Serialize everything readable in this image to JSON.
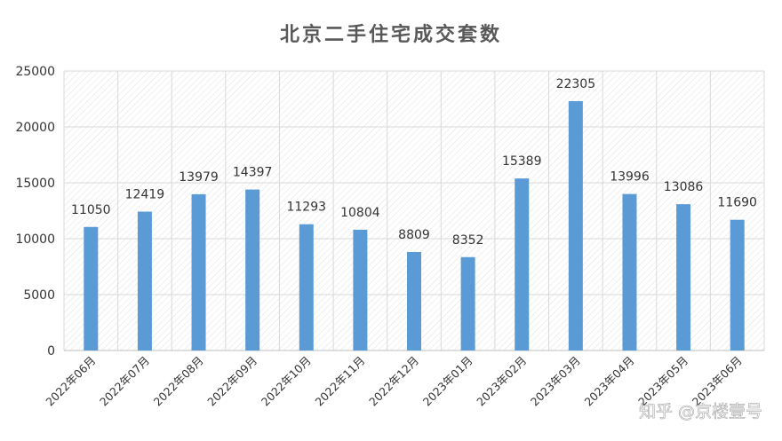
{
  "chart_data": {
    "type": "bar",
    "title": "北京二手住宅成交套数",
    "categories": [
      "2022年06月",
      "2022年07月",
      "2022年08月",
      "2022年09月",
      "2022年10月",
      "2022年11月",
      "2022年12月",
      "2023年01月",
      "2023年02月",
      "2023年03月",
      "2023年04月",
      "2023年05月",
      "2023年06月"
    ],
    "values": [
      11050,
      12419,
      13979,
      14397,
      11293,
      10804,
      8809,
      8352,
      15389,
      22305,
      13996,
      13086,
      11690
    ],
    "ylim": [
      0,
      25000
    ],
    "yticks": [
      0,
      5000,
      10000,
      15000,
      20000,
      25000
    ],
    "grid": true,
    "legend": "none",
    "bar_color": "#5b9bd5"
  },
  "watermark": "知乎 @京楼壹号"
}
